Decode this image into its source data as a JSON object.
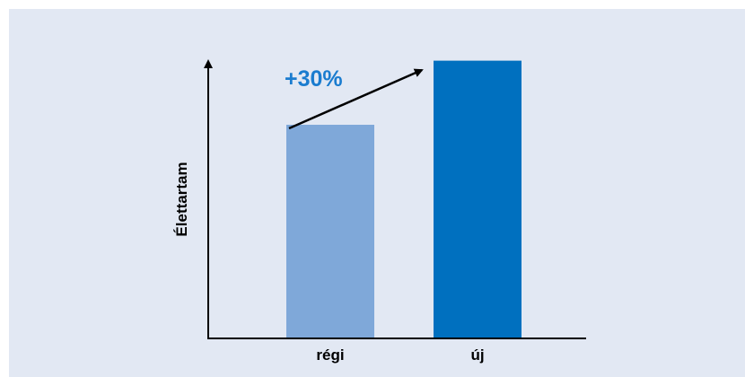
{
  "chart_data": {
    "type": "bar",
    "categories": [
      "régi",
      "új"
    ],
    "values": [
      100,
      130
    ],
    "xlabel": "",
    "ylabel": "Élettartam",
    "ylim": [
      0,
      150
    ],
    "grid": false,
    "legend": "none",
    "annotation": "+30%",
    "colors": {
      "bars": [
        "#7fa8d9",
        "#0070bf"
      ],
      "annotation": "#1a7ccf",
      "axis": "#000000",
      "background": "#e2e8f3"
    }
  }
}
